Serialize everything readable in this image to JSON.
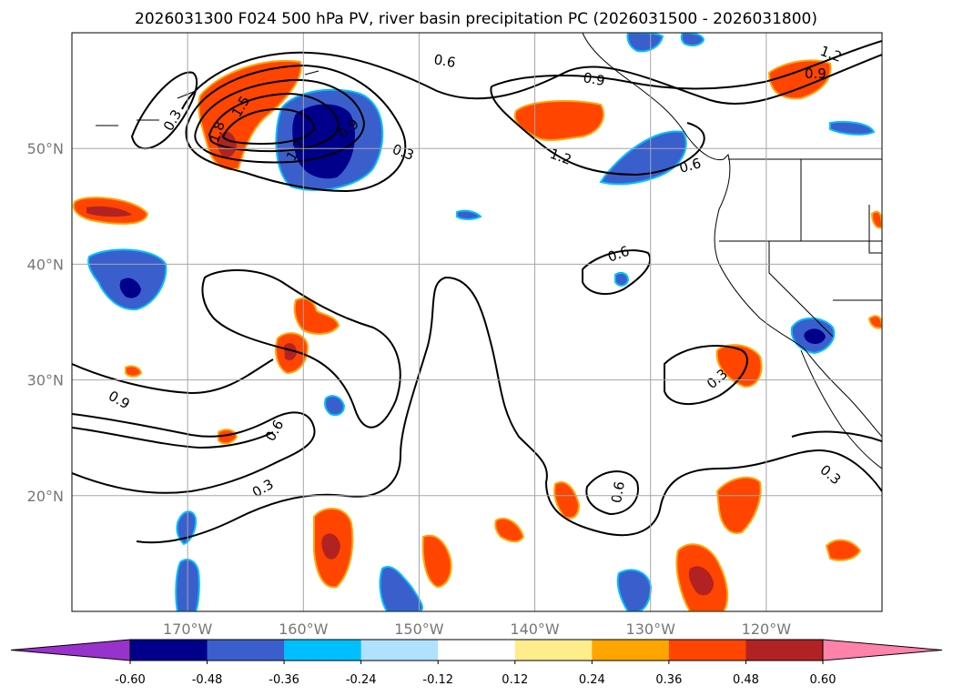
{
  "chart_data": {
    "type": "map-contour",
    "title": "2026031300 F024 500 hPa PV, river basin precipitation PC (2026031500 - 2026031800)",
    "lon_range": [
      -180,
      -110
    ],
    "lat_range": [
      10,
      60
    ],
    "lat_tick_labels": [
      "50°N",
      "40°N",
      "30°N",
      "20°N"
    ],
    "lat_ticks": [
      50,
      40,
      30,
      20
    ],
    "lon_tick_labels": [
      "170°W",
      "160°W",
      "150°W",
      "140°W",
      "130°W",
      "120°W"
    ],
    "lon_ticks": [
      -170,
      -160,
      -150,
      -140,
      -130,
      -120
    ],
    "grid": true,
    "pv_contour_labels": [
      "0.3",
      "0.6",
      "0.9",
      "1.2",
      "1.5",
      "1.8"
    ],
    "colorbar": {
      "orientation": "horizontal",
      "extend": "both",
      "tick_labels": [
        "-0.60",
        "-0.48",
        "-0.36",
        "-0.24",
        "-0.12",
        "0.12",
        "0.24",
        "0.36",
        "0.48",
        "0.60"
      ],
      "colors": [
        "#9932cc",
        "#00008b",
        "#3a5fcd",
        "#00bfff",
        "#b0e2ff",
        "#ffffff",
        "#ffec8b",
        "#ffa500",
        "#ff4500",
        "#b22222",
        "#ff82ab"
      ]
    }
  }
}
